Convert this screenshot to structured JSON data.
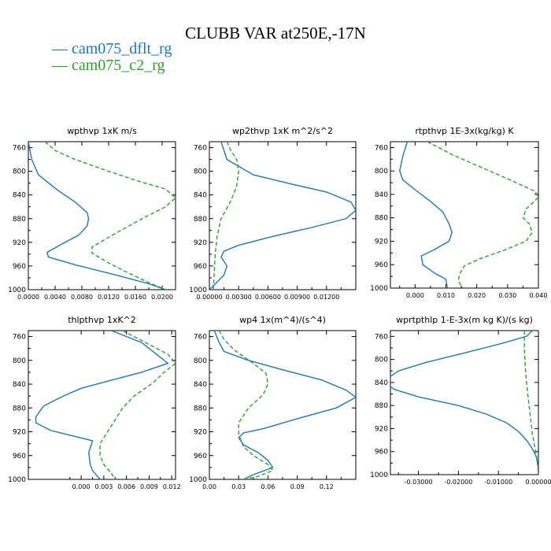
{
  "title": "CLUBB VAR at250E,-17N",
  "legend": [
    {
      "label": "— cam075_dflt_rg",
      "color": "#1f77b4"
    },
    {
      "label": "— cam075_c2_rg",
      "color": "#2ca02c"
    }
  ],
  "chart_data": [
    {
      "type": "line",
      "title": "wpthvp  1xK m/s",
      "xlim": [
        0.0,
        0.022
      ],
      "ylim": [
        750,
        1000
      ],
      "y_inverted": true,
      "xticks": [
        0.0,
        0.004,
        0.008,
        0.012,
        0.016,
        0.02
      ],
      "xtick_labels": [
        "0.0000",
        "0.0040",
        "0.0080",
        "0.0120",
        "0.0160",
        "0.0200"
      ],
      "yticks": [
        760,
        800,
        840,
        880,
        920,
        960,
        1000
      ],
      "ytick_labels": [
        "760",
        "800",
        "840",
        "880",
        "920",
        "960",
        "1000"
      ],
      "series": [
        {
          "name": "cam075_dflt_rg",
          "color": "#1f77b4",
          "dash": "none",
          "points": [
            [
              0.0,
              750
            ],
            [
              0.0005,
              780
            ],
            [
              0.0015,
              806
            ],
            [
              0.0045,
              833
            ],
            [
              0.007,
              852
            ],
            [
              0.0088,
              870
            ],
            [
              0.009,
              880
            ],
            [
              0.0088,
              892
            ],
            [
              0.0075,
              908
            ],
            [
              0.005,
              923
            ],
            [
              0.0028,
              937
            ],
            [
              0.003,
              945
            ],
            [
              0.007,
              958
            ],
            [
              0.013,
              975
            ],
            [
              0.018,
              990
            ],
            [
              0.0205,
              1000
            ]
          ]
        },
        {
          "name": "cam075_c2_rg",
          "color": "#2ca02c",
          "dash": "5,3",
          "points": [
            [
              0.0025,
              750
            ],
            [
              0.004,
              765
            ],
            [
              0.007,
              780
            ],
            [
              0.012,
              800
            ],
            [
              0.016,
              815
            ],
            [
              0.0205,
              830
            ],
            [
              0.022,
              845
            ],
            [
              0.0205,
              860
            ],
            [
              0.017,
              880
            ],
            [
              0.013,
              905
            ],
            [
              0.0095,
              928
            ],
            [
              0.0095,
              938
            ],
            [
              0.012,
              955
            ],
            [
              0.015,
              972
            ],
            [
              0.018,
              988
            ],
            [
              0.0205,
              1000
            ]
          ]
        }
      ]
    },
    {
      "type": "line",
      "title": "wp2thvp  1xK m^2/s^2",
      "xlim": [
        0.0,
        0.015
      ],
      "ylim": [
        750,
        1000
      ],
      "y_inverted": true,
      "xticks": [
        0.0,
        0.003,
        0.006,
        0.009,
        0.012
      ],
      "xtick_labels": [
        "0.00000",
        "0.00300",
        "0.00600",
        "0.00900",
        "0.01200"
      ],
      "yticks": [
        760,
        800,
        840,
        880,
        920,
        960,
        1000
      ],
      "ytick_labels": [
        "760",
        "800",
        "840",
        "880",
        "920",
        "960",
        "1000"
      ],
      "series": [
        {
          "name": "cam075_dflt_rg",
          "color": "#1f77b4",
          "dash": "none",
          "points": [
            [
              0.0012,
              750
            ],
            [
              0.0018,
              780
            ],
            [
              0.0045,
              806
            ],
            [
              0.0085,
              822
            ],
            [
              0.012,
              835
            ],
            [
              0.0145,
              852
            ],
            [
              0.015,
              866
            ],
            [
              0.014,
              880
            ],
            [
              0.0105,
              895
            ],
            [
              0.0065,
              910
            ],
            [
              0.003,
              925
            ],
            [
              0.0015,
              935
            ],
            [
              0.0012,
              945
            ],
            [
              0.0018,
              960
            ],
            [
              0.0015,
              975
            ],
            [
              0.0005,
              992
            ],
            [
              0.0,
              1000
            ]
          ]
        },
        {
          "name": "cam075_c2_rg",
          "color": "#2ca02c",
          "dash": "5,3",
          "points": [
            [
              0.0018,
              750
            ],
            [
              0.0022,
              765
            ],
            [
              0.0028,
              780
            ],
            [
              0.003,
              800
            ],
            [
              0.0028,
              825
            ],
            [
              0.0022,
              850
            ],
            [
              0.0012,
              880
            ],
            [
              0.0008,
              910
            ],
            [
              0.0006,
              940
            ],
            [
              0.0005,
              970
            ],
            [
              0.0004,
              1000
            ]
          ]
        }
      ]
    },
    {
      "type": "line",
      "title": "rtpthvp  1E-3x(kg/kg) K",
      "xlim": [
        -0.008,
        0.04
      ],
      "ylim": [
        750,
        1000
      ],
      "y_inverted": true,
      "xticks": [
        0.0,
        0.01,
        0.02,
        0.03,
        0.04
      ],
      "xtick_labels": [
        "0.000",
        "0.010",
        "0.020",
        "0.030",
        "0.040"
      ],
      "yticks": [
        760,
        800,
        840,
        880,
        920,
        960,
        1000
      ],
      "ytick_labels": [
        "760",
        "800",
        "840",
        "880",
        "920",
        "960",
        "1000"
      ],
      "series": [
        {
          "name": "cam075_dflt_rg",
          "color": "#1f77b4",
          "dash": "none",
          "points": [
            [
              -0.0025,
              750
            ],
            [
              -0.004,
              775
            ],
            [
              -0.005,
              800
            ],
            [
              -0.004,
              815
            ],
            [
              0.0,
              832
            ],
            [
              0.005,
              852
            ],
            [
              0.009,
              870
            ],
            [
              0.011,
              890
            ],
            [
              0.012,
              905
            ],
            [
              0.011,
              920
            ],
            [
              0.006,
              935
            ],
            [
              0.002,
              945
            ],
            [
              0.0025,
              960
            ],
            [
              0.0065,
              975
            ],
            [
              0.01,
              985
            ],
            [
              0.0105,
              1000
            ]
          ]
        },
        {
          "name": "cam075_c2_rg",
          "color": "#2ca02c",
          "dash": "5,3",
          "points": [
            [
              0.004,
              750
            ],
            [
              0.012,
              772
            ],
            [
              0.022,
              795
            ],
            [
              0.032,
              818
            ],
            [
              0.039,
              835
            ],
            [
              0.04,
              845
            ],
            [
              0.036,
              865
            ],
            [
              0.035,
              880
            ],
            [
              0.037,
              890
            ],
            [
              0.038,
              905
            ],
            [
              0.036,
              920
            ],
            [
              0.029,
              935
            ],
            [
              0.021,
              950
            ],
            [
              0.016,
              962
            ],
            [
              0.0145,
              975
            ],
            [
              0.014,
              988
            ],
            [
              0.0155,
              1000
            ]
          ]
        }
      ]
    },
    {
      "type": "line",
      "title": "thlpthvp  1xK^2",
      "xlim": [
        -0.007,
        0.0125
      ],
      "ylim": [
        750,
        1000
      ],
      "y_inverted": true,
      "xticks": [
        0.0,
        0.003,
        0.006,
        0.009,
        0.012
      ],
      "xtick_labels": [
        "0.000",
        "0.003",
        "0.006",
        "0.009",
        "0.012"
      ],
      "yticks": [
        760,
        800,
        840,
        880,
        920,
        960,
        1000
      ],
      "ytick_labels": [
        "760",
        "800",
        "840",
        "880",
        "920",
        "960",
        "1000"
      ],
      "series": [
        {
          "name": "cam075_dflt_rg",
          "color": "#1f77b4",
          "dash": "none",
          "points": [
            [
              0.004,
              750
            ],
            [
              0.008,
              770
            ],
            [
              0.01,
              790
            ],
            [
              0.0115,
              805
            ],
            [
              0.008,
              820
            ],
            [
              0.0035,
              835
            ],
            [
              0.0,
              847
            ],
            [
              -0.002,
              858
            ],
            [
              -0.0035,
              867
            ],
            [
              -0.005,
              877
            ],
            [
              -0.006,
              895
            ],
            [
              -0.006,
              905
            ],
            [
              -0.004,
              918
            ],
            [
              0.0015,
              935
            ],
            [
              0.001,
              955
            ],
            [
              0.0012,
              975
            ],
            [
              0.0015,
              985
            ],
            [
              0.0025,
              1000
            ]
          ]
        },
        {
          "name": "cam075_c2_rg",
          "color": "#2ca02c",
          "dash": "5,3",
          "points": [
            [
              0.0055,
              750
            ],
            [
              0.0085,
              770
            ],
            [
              0.0115,
              790
            ],
            [
              0.0125,
              805
            ],
            [
              0.011,
              820
            ],
            [
              0.0095,
              838
            ],
            [
              0.007,
              860
            ],
            [
              0.0055,
              880
            ],
            [
              0.0045,
              900
            ],
            [
              0.0035,
              920
            ],
            [
              0.0025,
              940
            ],
            [
              0.0025,
              960
            ],
            [
              0.003,
              975
            ],
            [
              0.004,
              990
            ],
            [
              0.0045,
              1000
            ]
          ]
        }
      ]
    },
    {
      "type": "line",
      "title": "wp4  1x(m^4)/(s^4)",
      "xlim": [
        0.0,
        0.15
      ],
      "ylim": [
        750,
        1000
      ],
      "y_inverted": true,
      "xticks": [
        0.0,
        0.03,
        0.06,
        0.09,
        0.12
      ],
      "xtick_labels": [
        "0.00",
        "0.03",
        "0.06",
        "0.09",
        "0.12"
      ],
      "yticks": [
        760,
        800,
        840,
        880,
        920,
        960,
        1000
      ],
      "ytick_labels": [
        "760",
        "800",
        "840",
        "880",
        "920",
        "960",
        "1000"
      ],
      "series": [
        {
          "name": "cam075_dflt_rg",
          "color": "#1f77b4",
          "dash": "none",
          "points": [
            [
              0.005,
              750
            ],
            [
              0.01,
              770
            ],
            [
              0.015,
              785
            ],
            [
              0.04,
              800
            ],
            [
              0.08,
              818
            ],
            [
              0.115,
              833
            ],
            [
              0.14,
              850
            ],
            [
              0.15,
              862
            ],
            [
              0.13,
              880
            ],
            [
              0.09,
              898
            ],
            [
              0.055,
              915
            ],
            [
              0.035,
              922
            ],
            [
              0.03,
              930
            ],
            [
              0.035,
              942
            ],
            [
              0.05,
              955
            ],
            [
              0.06,
              968
            ],
            [
              0.065,
              980
            ],
            [
              0.045,
              992
            ],
            [
              0.035,
              1000
            ]
          ]
        },
        {
          "name": "cam075_c2_rg",
          "color": "#2ca02c",
          "dash": "5,3",
          "points": [
            [
              0.01,
              750
            ],
            [
              0.015,
              765
            ],
            [
              0.025,
              782
            ],
            [
              0.045,
              805
            ],
            [
              0.058,
              822
            ],
            [
              0.06,
              840
            ],
            [
              0.055,
              858
            ],
            [
              0.04,
              880
            ],
            [
              0.03,
              905
            ],
            [
              0.03,
              925
            ],
            [
              0.035,
              945
            ],
            [
              0.045,
              960
            ],
            [
              0.06,
              975
            ],
            [
              0.065,
              985
            ],
            [
              0.05,
              995
            ],
            [
              0.035,
              1000
            ]
          ]
        }
      ]
    },
    {
      "type": "line",
      "title": "wprtpthlp  1-E-3x(m kg K)/(s kg)",
      "xlim": [
        -0.037,
        0.0
      ],
      "ylim": [
        750,
        1000
      ],
      "y_inverted": true,
      "xticks": [
        -0.03,
        -0.02,
        -0.01,
        0.0
      ],
      "xtick_labels": [
        "-0.03000",
        "-0.02000",
        "-0.01000",
        "0.00000"
      ],
      "yticks": [
        760,
        800,
        840,
        880,
        920,
        960,
        1000
      ],
      "ytick_labels": [
        "760",
        "800",
        "840",
        "880",
        "920",
        "960",
        "1000"
      ],
      "series": [
        {
          "name": "cam075_dflt_rg",
          "color": "#1f77b4",
          "dash": "none",
          "points": [
            [
              -0.0015,
              750
            ],
            [
              -0.003,
              760
            ],
            [
              -0.009,
              772
            ],
            [
              -0.018,
              788
            ],
            [
              -0.028,
              805
            ],
            [
              -0.035,
              820
            ],
            [
              -0.0375,
              832
            ],
            [
              -0.0375,
              845
            ],
            [
              -0.036,
              852
            ],
            [
              -0.03,
              865
            ],
            [
              -0.02,
              880
            ],
            [
              -0.013,
              895
            ],
            [
              -0.008,
              910
            ],
            [
              -0.005,
              925
            ],
            [
              -0.003,
              940
            ],
            [
              -0.0015,
              955
            ],
            [
              -0.0005,
              970
            ],
            [
              -0.0001,
              985
            ],
            [
              0.0,
              1000
            ]
          ]
        },
        {
          "name": "cam075_c2_rg",
          "color": "#2ca02c",
          "dash": "5,3",
          "points": [
            [
              -0.0035,
              750
            ],
            [
              -0.0035,
              780
            ],
            [
              -0.0033,
              810
            ],
            [
              -0.003,
              840
            ],
            [
              -0.0025,
              870
            ],
            [
              -0.002,
              900
            ],
            [
              -0.0015,
              930
            ],
            [
              -0.0008,
              955
            ],
            [
              -0.0003,
              975
            ],
            [
              0.0,
              1000
            ]
          ]
        }
      ]
    }
  ]
}
